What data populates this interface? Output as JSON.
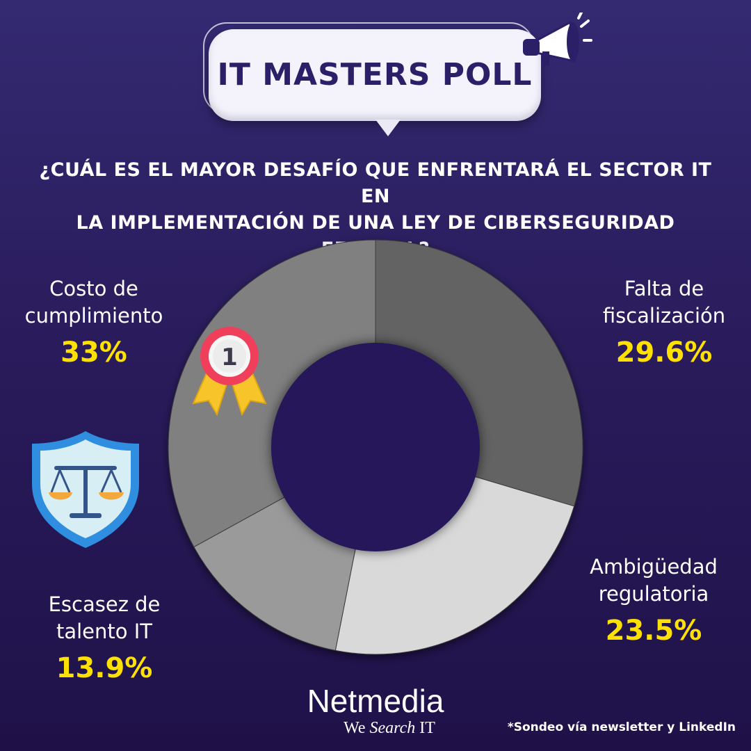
{
  "banner": {
    "title": "IT MASTERS POLL"
  },
  "question": {
    "line1": "¿CUÁL ES EL MAYOR DESAFÍO QUE ENFRENTARÁ EL SECTOR IT EN",
    "line2": "LA IMPLEMENTACIÓN DE UNA LEY DE CIBERSEGURIDAD FEDERAL?"
  },
  "chart_data": {
    "type": "pie",
    "title": "",
    "categories": [
      "Falta de fiscalización",
      "Ambigüedad regulatoria",
      "Escasez de talento IT",
      "Costo de cumplimiento"
    ],
    "values": [
      29.6,
      23.5,
      13.9,
      33
    ],
    "colors": [
      "#636363",
      "#d9d9d9",
      "#9a9a9a",
      "#808080"
    ],
    "value_labels": [
      "29.6%",
      "23.5%",
      "13.9%",
      "33%"
    ],
    "label_lines": [
      [
        "Falta de",
        "fiscalización"
      ],
      [
        "Ambigüedad",
        "regulatoria"
      ],
      [
        "Escasez de",
        "talento IT"
      ],
      [
        "Costo de",
        "cumplimiento"
      ]
    ],
    "donut": true
  },
  "medal": {
    "number": "1",
    "icon": "medal-icon"
  },
  "shield": {
    "icon": "shield-scales-icon"
  },
  "logo": {
    "main": "Netmedia",
    "sub_we": "We ",
    "sub_search": "Search",
    "sub_it": " IT"
  },
  "note": "*Sondeo vía newsletter y LinkedIn",
  "colors": {
    "accent": "#ffe100",
    "title_text": "#2b2068"
  }
}
